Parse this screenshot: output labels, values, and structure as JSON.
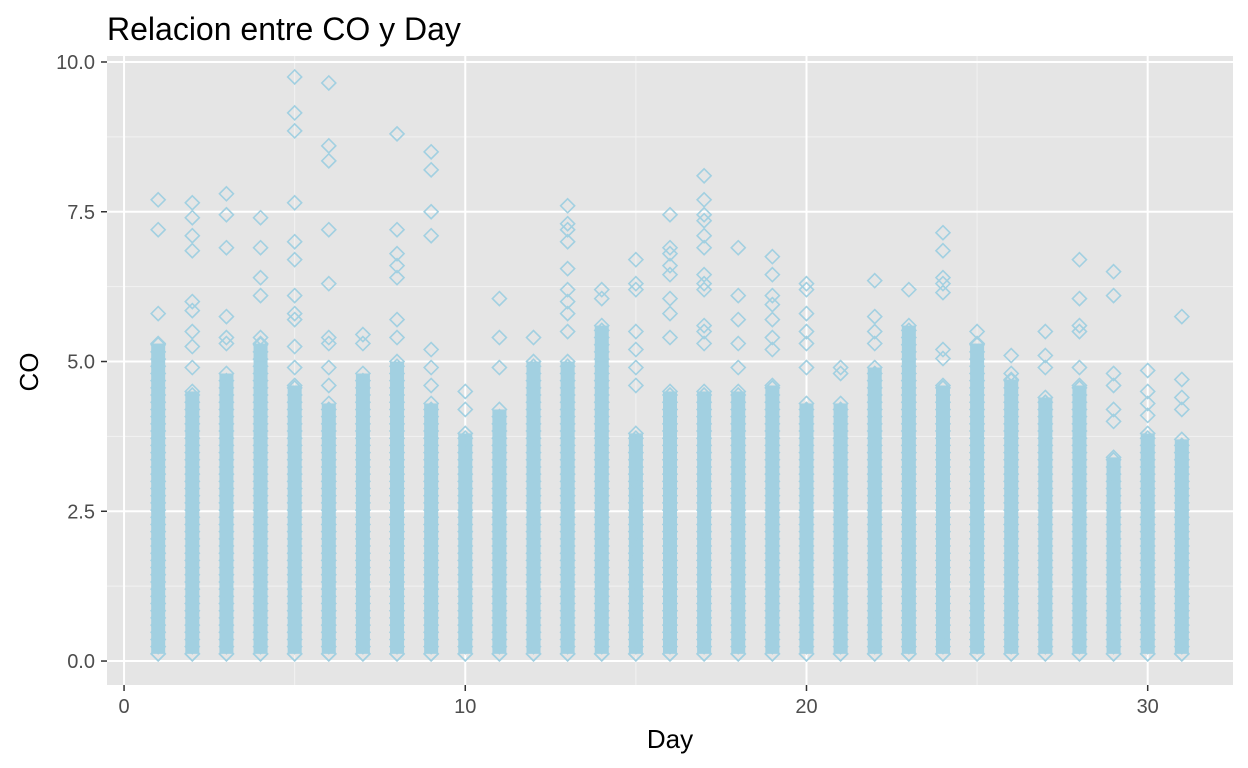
{
  "chart_data": {
    "type": "scatter",
    "title": "Relacion entre CO y Day",
    "xlabel": "Day",
    "ylabel": "CO",
    "xlim": [
      -0.5,
      32.5
    ],
    "ylim": [
      -0.4,
      10.1
    ],
    "x_ticks": [
      {
        "value": 0,
        "label": "0"
      },
      {
        "value": 10,
        "label": "10"
      },
      {
        "value": 20,
        "label": "20"
      },
      {
        "value": 30,
        "label": "30"
      }
    ],
    "y_ticks": [
      {
        "value": 0.0,
        "label": "0.0"
      },
      {
        "value": 2.5,
        "label": "2.5"
      },
      {
        "value": 5.0,
        "label": "5.0"
      },
      {
        "value": 7.5,
        "label": "7.5"
      },
      {
        "value": 10.0,
        "label": "10.0"
      }
    ],
    "grid": true,
    "marker": "open-diamond",
    "point_color": "#a2d0e1",
    "panel_background": "#e5e5e5",
    "days": [
      {
        "x": 1,
        "max": 7.7,
        "dense_to": 5.3,
        "outliers": [
          7.7,
          7.2,
          5.8
        ]
      },
      {
        "x": 2,
        "max": 7.65,
        "dense_to": 4.5,
        "outliers": [
          7.65,
          7.4,
          7.1,
          6.85,
          6.0,
          5.85,
          5.5,
          5.25,
          4.9
        ]
      },
      {
        "x": 3,
        "max": 7.8,
        "dense_to": 4.8,
        "outliers": [
          7.8,
          7.45,
          6.9,
          5.75,
          5.4,
          5.3
        ]
      },
      {
        "x": 4,
        "max": 7.4,
        "dense_to": 5.3,
        "outliers": [
          7.4,
          6.9,
          6.4,
          6.1,
          5.4
        ]
      },
      {
        "x": 5,
        "max": 9.75,
        "dense_to": 4.6,
        "outliers": [
          9.75,
          9.15,
          8.85,
          7.65,
          7.0,
          6.7,
          6.1,
          5.8,
          5.7,
          5.25,
          4.9
        ]
      },
      {
        "x": 6,
        "max": 9.65,
        "dense_to": 4.3,
        "outliers": [
          9.65,
          8.6,
          8.35,
          7.2,
          6.3,
          5.4,
          5.3,
          4.9,
          4.6
        ]
      },
      {
        "x": 7,
        "max": 5.45,
        "dense_to": 4.8,
        "outliers": [
          5.45,
          5.3
        ]
      },
      {
        "x": 8,
        "max": 8.8,
        "dense_to": 5.0,
        "outliers": [
          8.8,
          7.2,
          6.8,
          6.6,
          6.4,
          5.7,
          5.4
        ]
      },
      {
        "x": 9,
        "max": 8.5,
        "dense_to": 4.3,
        "outliers": [
          8.5,
          8.2,
          7.5,
          7.1,
          5.2,
          4.9,
          4.6
        ]
      },
      {
        "x": 10,
        "max": 4.5,
        "dense_to": 3.8,
        "outliers": [
          4.5,
          4.2
        ]
      },
      {
        "x": 11,
        "max": 6.05,
        "dense_to": 4.2,
        "outliers": [
          6.05,
          5.4,
          4.9
        ]
      },
      {
        "x": 12,
        "max": 5.4,
        "dense_to": 5.0,
        "outliers": [
          5.4
        ]
      },
      {
        "x": 13,
        "max": 7.6,
        "dense_to": 5.0,
        "outliers": [
          7.6,
          7.3,
          7.2,
          7.0,
          6.55,
          6.2,
          6.0,
          5.8,
          5.5
        ]
      },
      {
        "x": 14,
        "max": 6.2,
        "dense_to": 5.6,
        "outliers": [
          6.2,
          6.05
        ]
      },
      {
        "x": 15,
        "max": 6.7,
        "dense_to": 3.8,
        "outliers": [
          6.7,
          6.3,
          6.2,
          5.5,
          5.2,
          4.9,
          4.6
        ]
      },
      {
        "x": 16,
        "max": 7.45,
        "dense_to": 4.5,
        "outliers": [
          7.45,
          6.9,
          6.8,
          6.6,
          6.45,
          6.05,
          5.8,
          5.4
        ]
      },
      {
        "x": 17,
        "max": 8.1,
        "dense_to": 4.5,
        "outliers": [
          8.1,
          7.7,
          7.45,
          7.35,
          7.1,
          6.9,
          6.45,
          6.3,
          6.2,
          5.6,
          5.5,
          5.3
        ]
      },
      {
        "x": 18,
        "max": 6.9,
        "dense_to": 4.5,
        "outliers": [
          6.9,
          6.1,
          5.7,
          5.3,
          4.9
        ]
      },
      {
        "x": 19,
        "max": 6.75,
        "dense_to": 4.6,
        "outliers": [
          6.75,
          6.45,
          6.1,
          5.95,
          5.7,
          5.4,
          5.2
        ]
      },
      {
        "x": 20,
        "max": 6.3,
        "dense_to": 4.3,
        "outliers": [
          6.3,
          6.2,
          5.8,
          5.5,
          5.3,
          4.9
        ]
      },
      {
        "x": 21,
        "max": 4.9,
        "dense_to": 4.3,
        "outliers": [
          4.9,
          4.8
        ]
      },
      {
        "x": 22,
        "max": 6.35,
        "dense_to": 4.9,
        "outliers": [
          6.35,
          5.75,
          5.5,
          5.3
        ]
      },
      {
        "x": 23,
        "max": 6.2,
        "dense_to": 5.6,
        "outliers": [
          6.2
        ]
      },
      {
        "x": 24,
        "max": 7.15,
        "dense_to": 4.6,
        "outliers": [
          7.15,
          6.85,
          6.4,
          6.3,
          6.15,
          5.2,
          5.05
        ]
      },
      {
        "x": 25,
        "max": 5.5,
        "dense_to": 5.3,
        "outliers": [
          5.5
        ]
      },
      {
        "x": 26,
        "max": 5.1,
        "dense_to": 4.7,
        "outliers": [
          5.1,
          4.8
        ]
      },
      {
        "x": 27,
        "max": 5.5,
        "dense_to": 4.4,
        "outliers": [
          5.5,
          5.1,
          4.9
        ]
      },
      {
        "x": 28,
        "max": 6.7,
        "dense_to": 4.6,
        "outliers": [
          6.7,
          6.05,
          5.6,
          5.5,
          4.9
        ]
      },
      {
        "x": 29,
        "max": 6.5,
        "dense_to": 3.4,
        "outliers": [
          6.5,
          6.1,
          4.8,
          4.6,
          4.2,
          4.0
        ]
      },
      {
        "x": 30,
        "max": 4.85,
        "dense_to": 3.8,
        "outliers": [
          4.85,
          4.5,
          4.3,
          4.1
        ]
      },
      {
        "x": 31,
        "max": 5.75,
        "dense_to": 3.7,
        "outliers": [
          5.75,
          4.7,
          4.4,
          4.2
        ]
      }
    ]
  }
}
